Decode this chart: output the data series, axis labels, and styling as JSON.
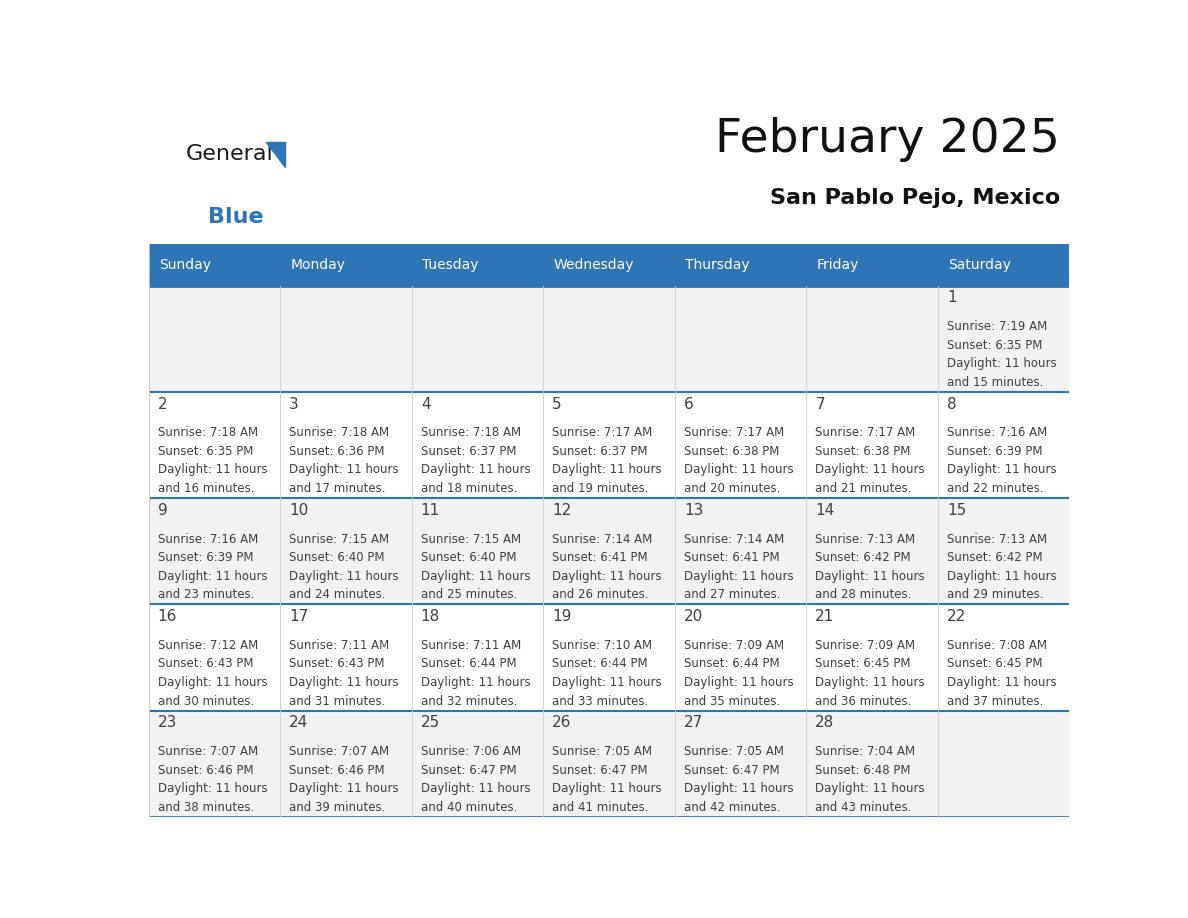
{
  "title": "February 2025",
  "subtitle": "San Pablo Pejo, Mexico",
  "header_bg": "#2E75B6",
  "header_text": "#FFFFFF",
  "cell_bg_odd": "#F2F2F2",
  "cell_bg_even": "#FFFFFF",
  "border_color": "#2E75B6",
  "grid_color": "#CCCCCC",
  "text_color": "#404040",
  "day_headers": [
    "Sunday",
    "Monday",
    "Tuesday",
    "Wednesday",
    "Thursday",
    "Friday",
    "Saturday"
  ],
  "logo_color_general": "#1a1a1a",
  "logo_color_blue": "#2E75B6",
  "days": [
    {
      "day": 1,
      "col": 6,
      "row": 0,
      "sunrise": "7:19 AM",
      "sunset": "6:35 PM",
      "daylight_hours": 11,
      "daylight_minutes": 15
    },
    {
      "day": 2,
      "col": 0,
      "row": 1,
      "sunrise": "7:18 AM",
      "sunset": "6:35 PM",
      "daylight_hours": 11,
      "daylight_minutes": 16
    },
    {
      "day": 3,
      "col": 1,
      "row": 1,
      "sunrise": "7:18 AM",
      "sunset": "6:36 PM",
      "daylight_hours": 11,
      "daylight_minutes": 17
    },
    {
      "day": 4,
      "col": 2,
      "row": 1,
      "sunrise": "7:18 AM",
      "sunset": "6:37 PM",
      "daylight_hours": 11,
      "daylight_minutes": 18
    },
    {
      "day": 5,
      "col": 3,
      "row": 1,
      "sunrise": "7:17 AM",
      "sunset": "6:37 PM",
      "daylight_hours": 11,
      "daylight_minutes": 19
    },
    {
      "day": 6,
      "col": 4,
      "row": 1,
      "sunrise": "7:17 AM",
      "sunset": "6:38 PM",
      "daylight_hours": 11,
      "daylight_minutes": 20
    },
    {
      "day": 7,
      "col": 5,
      "row": 1,
      "sunrise": "7:17 AM",
      "sunset": "6:38 PM",
      "daylight_hours": 11,
      "daylight_minutes": 21
    },
    {
      "day": 8,
      "col": 6,
      "row": 1,
      "sunrise": "7:16 AM",
      "sunset": "6:39 PM",
      "daylight_hours": 11,
      "daylight_minutes": 22
    },
    {
      "day": 9,
      "col": 0,
      "row": 2,
      "sunrise": "7:16 AM",
      "sunset": "6:39 PM",
      "daylight_hours": 11,
      "daylight_minutes": 23
    },
    {
      "day": 10,
      "col": 1,
      "row": 2,
      "sunrise": "7:15 AM",
      "sunset": "6:40 PM",
      "daylight_hours": 11,
      "daylight_minutes": 24
    },
    {
      "day": 11,
      "col": 2,
      "row": 2,
      "sunrise": "7:15 AM",
      "sunset": "6:40 PM",
      "daylight_hours": 11,
      "daylight_minutes": 25
    },
    {
      "day": 12,
      "col": 3,
      "row": 2,
      "sunrise": "7:14 AM",
      "sunset": "6:41 PM",
      "daylight_hours": 11,
      "daylight_minutes": 26
    },
    {
      "day": 13,
      "col": 4,
      "row": 2,
      "sunrise": "7:14 AM",
      "sunset": "6:41 PM",
      "daylight_hours": 11,
      "daylight_minutes": 27
    },
    {
      "day": 14,
      "col": 5,
      "row": 2,
      "sunrise": "7:13 AM",
      "sunset": "6:42 PM",
      "daylight_hours": 11,
      "daylight_minutes": 28
    },
    {
      "day": 15,
      "col": 6,
      "row": 2,
      "sunrise": "7:13 AM",
      "sunset": "6:42 PM",
      "daylight_hours": 11,
      "daylight_minutes": 29
    },
    {
      "day": 16,
      "col": 0,
      "row": 3,
      "sunrise": "7:12 AM",
      "sunset": "6:43 PM",
      "daylight_hours": 11,
      "daylight_minutes": 30
    },
    {
      "day": 17,
      "col": 1,
      "row": 3,
      "sunrise": "7:11 AM",
      "sunset": "6:43 PM",
      "daylight_hours": 11,
      "daylight_minutes": 31
    },
    {
      "day": 18,
      "col": 2,
      "row": 3,
      "sunrise": "7:11 AM",
      "sunset": "6:44 PM",
      "daylight_hours": 11,
      "daylight_minutes": 32
    },
    {
      "day": 19,
      "col": 3,
      "row": 3,
      "sunrise": "7:10 AM",
      "sunset": "6:44 PM",
      "daylight_hours": 11,
      "daylight_minutes": 33
    },
    {
      "day": 20,
      "col": 4,
      "row": 3,
      "sunrise": "7:09 AM",
      "sunset": "6:44 PM",
      "daylight_hours": 11,
      "daylight_minutes": 35
    },
    {
      "day": 21,
      "col": 5,
      "row": 3,
      "sunrise": "7:09 AM",
      "sunset": "6:45 PM",
      "daylight_hours": 11,
      "daylight_minutes": 36
    },
    {
      "day": 22,
      "col": 6,
      "row": 3,
      "sunrise": "7:08 AM",
      "sunset": "6:45 PM",
      "daylight_hours": 11,
      "daylight_minutes": 37
    },
    {
      "day": 23,
      "col": 0,
      "row": 4,
      "sunrise": "7:07 AM",
      "sunset": "6:46 PM",
      "daylight_hours": 11,
      "daylight_minutes": 38
    },
    {
      "day": 24,
      "col": 1,
      "row": 4,
      "sunrise": "7:07 AM",
      "sunset": "6:46 PM",
      "daylight_hours": 11,
      "daylight_minutes": 39
    },
    {
      "day": 25,
      "col": 2,
      "row": 4,
      "sunrise": "7:06 AM",
      "sunset": "6:47 PM",
      "daylight_hours": 11,
      "daylight_minutes": 40
    },
    {
      "day": 26,
      "col": 3,
      "row": 4,
      "sunrise": "7:05 AM",
      "sunset": "6:47 PM",
      "daylight_hours": 11,
      "daylight_minutes": 41
    },
    {
      "day": 27,
      "col": 4,
      "row": 4,
      "sunrise": "7:05 AM",
      "sunset": "6:47 PM",
      "daylight_hours": 11,
      "daylight_minutes": 42
    },
    {
      "day": 28,
      "col": 5,
      "row": 4,
      "sunrise": "7:04 AM",
      "sunset": "6:48 PM",
      "daylight_hours": 11,
      "daylight_minutes": 43
    }
  ]
}
